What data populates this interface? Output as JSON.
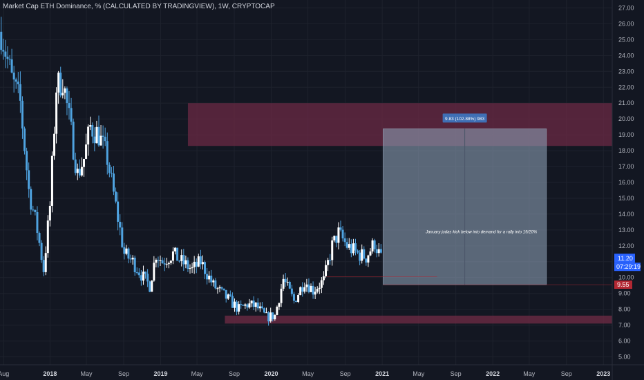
{
  "header": {
    "title": "Market Cap ETH Dominance, % (CALCULATED BY TRADINGVIEW), 1W, CRYPTOCAP"
  },
  "colors": {
    "background": "#131722",
    "up": "#ffffff",
    "down": "#4fa3e0",
    "zone": "#6b2a44",
    "measure_box": "#8a9db3",
    "price_label": "#2962ff",
    "target_label": "#b22833",
    "grid": "#1e222d"
  },
  "chart_data": {
    "type": "candlestick",
    "y_ticks": [
      "27.00",
      "26.00",
      "25.00",
      "24.00",
      "23.00",
      "22.00",
      "21.00",
      "20.00",
      "19.00",
      "18.00",
      "17.00",
      "16.00",
      "15.00",
      "14.00",
      "13.00",
      "12.00",
      "11.00",
      "10.00",
      "9.00",
      "8.00",
      "7.00",
      "6.00",
      "5.00"
    ],
    "x_ticks": [
      {
        "label": "Aug",
        "date": "2017-08-01",
        "year": false
      },
      {
        "label": "2018",
        "date": "2018-01-01",
        "year": true
      },
      {
        "label": "May",
        "date": "2018-05-01",
        "year": false
      },
      {
        "label": "Sep",
        "date": "2018-09-01",
        "year": false
      },
      {
        "label": "2019",
        "date": "2019-01-01",
        "year": true
      },
      {
        "label": "May",
        "date": "2019-05-01",
        "year": false
      },
      {
        "label": "Sep",
        "date": "2019-09-01",
        "year": false
      },
      {
        "label": "2020",
        "date": "2020-01-01",
        "year": true
      },
      {
        "label": "May",
        "date": "2020-05-01",
        "year": false
      },
      {
        "label": "Sep",
        "date": "2020-09-01",
        "year": false
      },
      {
        "label": "2021",
        "date": "2021-01-01",
        "year": true
      },
      {
        "label": "May",
        "date": "2021-05-01",
        "year": false
      },
      {
        "label": "Sep",
        "date": "2021-09-01",
        "year": false
      },
      {
        "label": "2022",
        "date": "2022-01-01",
        "year": true
      },
      {
        "label": "May",
        "date": "2022-05-01",
        "year": false
      },
      {
        "label": "Sep",
        "date": "2022-09-01",
        "year": false
      },
      {
        "label": "2023",
        "date": "2023-01-01",
        "year": true
      }
    ],
    "ylim": [
      4.5,
      27.5
    ],
    "xlim": [
      "2017-07-20",
      "2023-01-30"
    ],
    "series": [
      {
        "date": "2017-07-24",
        "close": 25.5
      },
      {
        "date": "2017-08-28",
        "close": 22.5
      },
      {
        "date": "2017-09-25",
        "close": 21.0
      },
      {
        "date": "2017-10-23",
        "close": 15.5
      },
      {
        "date": "2017-11-20",
        "close": 13.0
      },
      {
        "date": "2017-12-11",
        "close": 10.5
      },
      {
        "date": "2018-01-01",
        "close": 14.5
      },
      {
        "date": "2018-01-22",
        "close": 22.0
      },
      {
        "date": "2018-02-12",
        "close": 22.5
      },
      {
        "date": "2018-03-05",
        "close": 20.0
      },
      {
        "date": "2018-04-02",
        "close": 16.5
      },
      {
        "date": "2018-04-23",
        "close": 17.5
      },
      {
        "date": "2018-05-14",
        "close": 19.5
      },
      {
        "date": "2018-06-11",
        "close": 19.0
      },
      {
        "date": "2018-07-09",
        "close": 17.5
      },
      {
        "date": "2018-08-06",
        "close": 14.5
      },
      {
        "date": "2018-09-03",
        "close": 11.5
      },
      {
        "date": "2018-10-01",
        "close": 11.0
      },
      {
        "date": "2018-11-05",
        "close": 10.0
      },
      {
        "date": "2018-11-26",
        "close": 9.5
      },
      {
        "date": "2018-12-17",
        "close": 11.5
      },
      {
        "date": "2019-01-07",
        "close": 11.0
      },
      {
        "date": "2019-02-11",
        "close": 11.5
      },
      {
        "date": "2019-03-11",
        "close": 11.0
      },
      {
        "date": "2019-04-15",
        "close": 10.5
      },
      {
        "date": "2019-05-13",
        "close": 11.0
      },
      {
        "date": "2019-06-24",
        "close": 9.5
      },
      {
        "date": "2019-07-22",
        "close": 9.0
      },
      {
        "date": "2019-08-19",
        "close": 8.5
      },
      {
        "date": "2019-09-16",
        "close": 8.0
      },
      {
        "date": "2019-10-14",
        "close": 8.3
      },
      {
        "date": "2019-11-11",
        "close": 8.2
      },
      {
        "date": "2019-12-16",
        "close": 7.5
      },
      {
        "date": "2020-01-13",
        "close": 7.6
      },
      {
        "date": "2020-02-10",
        "close": 9.9
      },
      {
        "date": "2020-03-16",
        "close": 8.5
      },
      {
        "date": "2020-04-20",
        "close": 9.8
      },
      {
        "date": "2020-05-18",
        "close": 9.2
      },
      {
        "date": "2020-06-22",
        "close": 9.8
      },
      {
        "date": "2020-07-20",
        "close": 12.0
      },
      {
        "date": "2020-08-10",
        "close": 12.8
      },
      {
        "date": "2020-09-07",
        "close": 12.0
      },
      {
        "date": "2020-10-12",
        "close": 11.5
      },
      {
        "date": "2020-11-09",
        "close": 11.3
      },
      {
        "date": "2020-12-07",
        "close": 12.2
      },
      {
        "date": "2020-12-28",
        "close": 11.2
      }
    ],
    "annotations": {
      "resistance_zone": {
        "from": "2019-04-01",
        "to": "2023-01-30",
        "low": 18.3,
        "high": 21.0
      },
      "support_zone": {
        "from": "2019-08-01",
        "to": "2023-01-30",
        "low": 7.1,
        "high": 7.6
      },
      "measure_box": {
        "from": "2021-01-04",
        "to": "2022-06-27",
        "low": 9.55,
        "high": 19.38
      },
      "measure_label": "9.83 (102.88%) 983",
      "note": "January judas kick below into demand for a rally into 19/20%",
      "current_price": "11.20",
      "countdown": "07:29:19",
      "target_price": "9.55",
      "current_value": 11.2,
      "target_value": 9.55
    }
  }
}
